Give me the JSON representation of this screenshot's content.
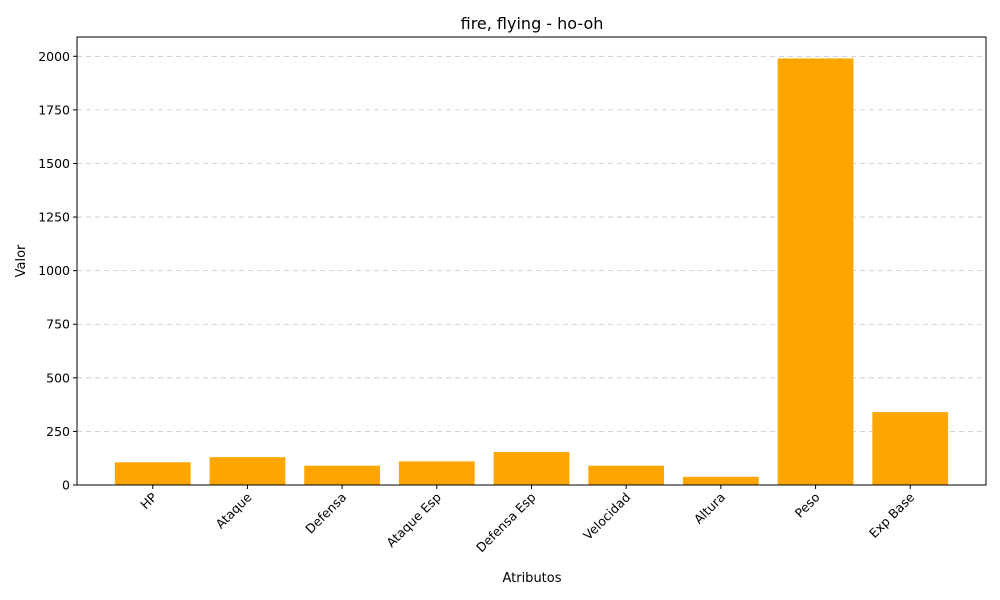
{
  "chart_data": {
    "type": "bar",
    "title": "fire, flying - ho-oh",
    "xlabel": "Atributos",
    "ylabel": "Valor",
    "categories": [
      "HP",
      "Ataque",
      "Defensa",
      "Ataque Esp",
      "Defensa Esp",
      "Velocidad",
      "Altura",
      "Peso",
      "Exp Base"
    ],
    "values": [
      106,
      130,
      90,
      110,
      154,
      90,
      38,
      1990,
      340
    ],
    "ylim": [
      0,
      2090
    ],
    "yticks": [
      0,
      250,
      500,
      750,
      1000,
      1250,
      1500,
      1750,
      2000
    ],
    "grid": "y-dashed",
    "bar_color": "#ffa500"
  }
}
